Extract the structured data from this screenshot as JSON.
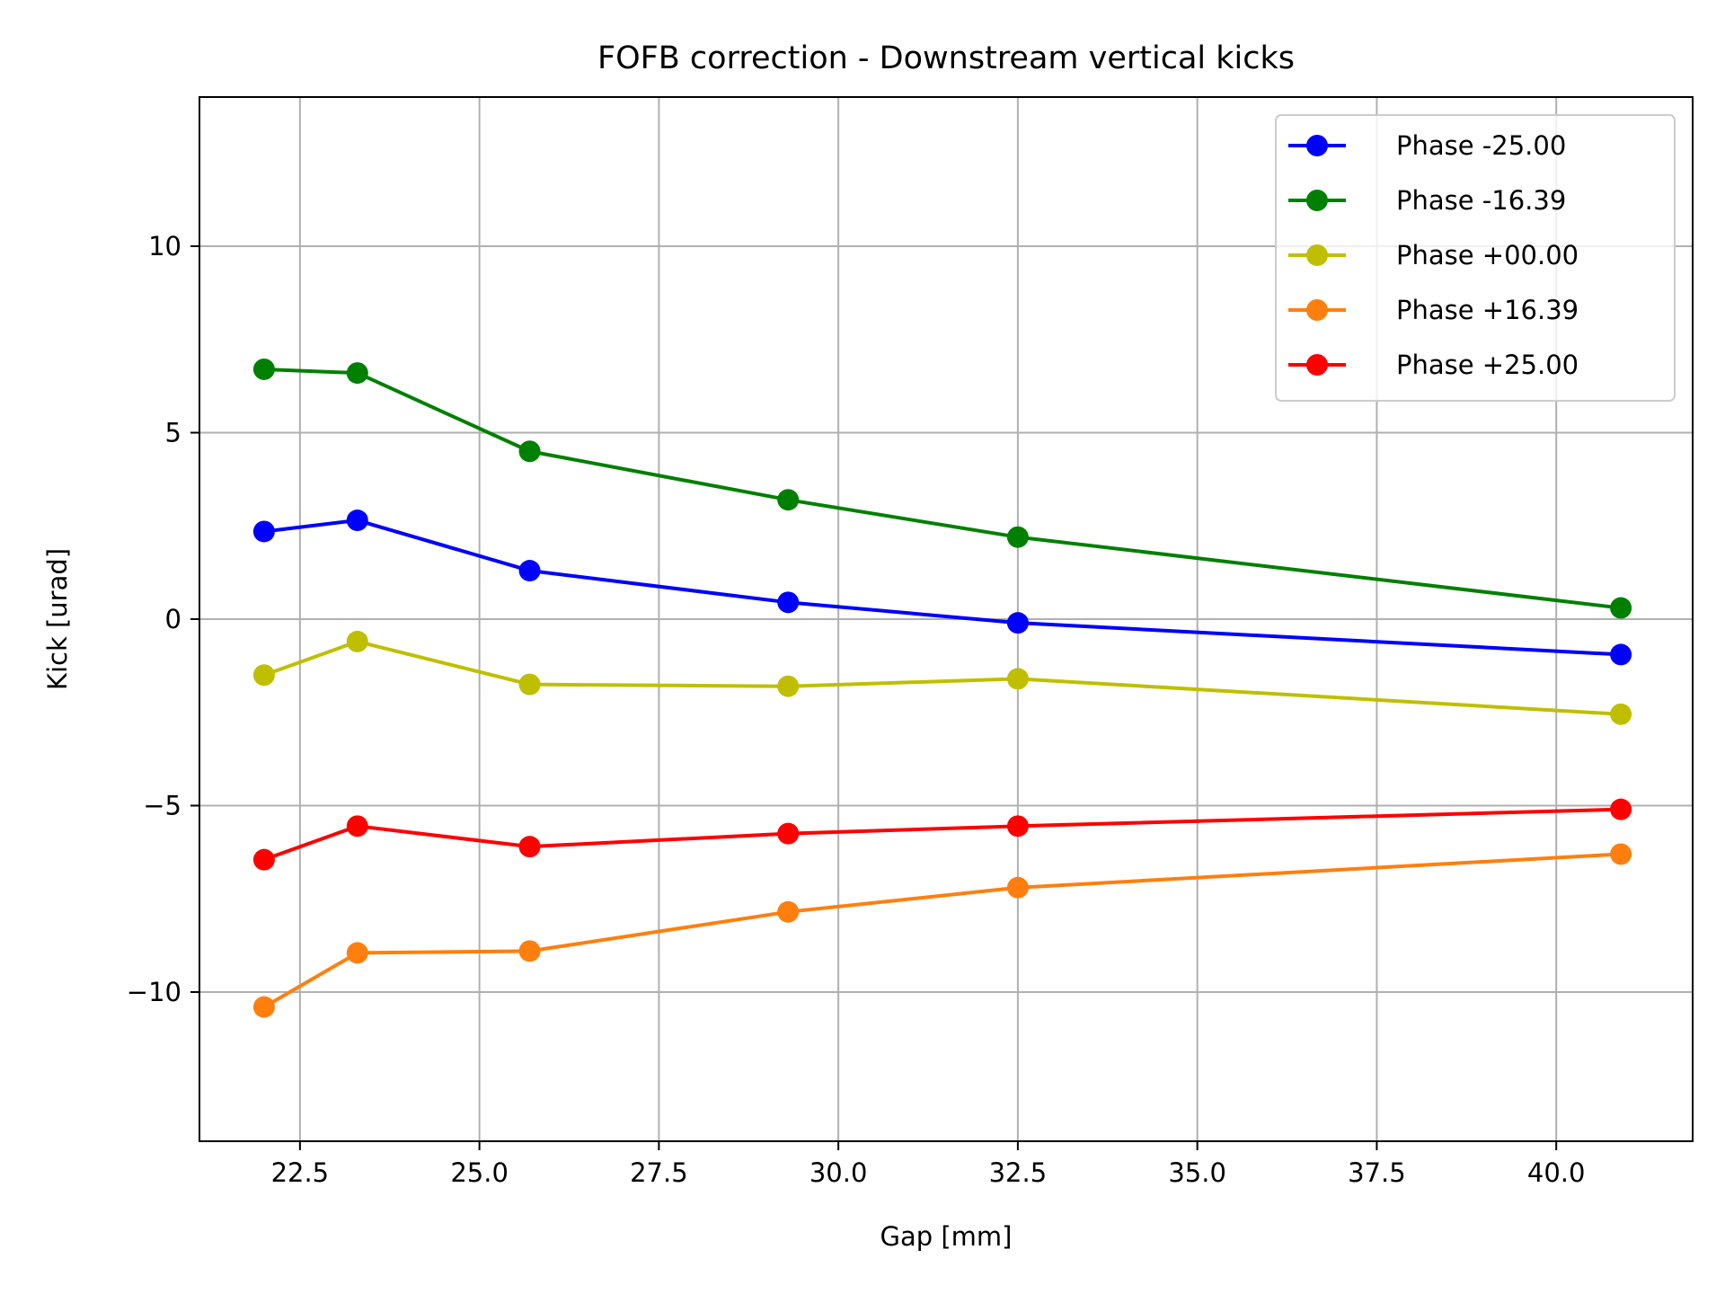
{
  "chart_data": {
    "type": "line",
    "title": "FOFB correction - Downstream vertical kicks",
    "xlabel": "Gap [mm]",
    "ylabel": "Kick [urad]",
    "xlim": [
      21.1,
      41.9
    ],
    "ylim": [
      -14,
      14
    ],
    "xticks": [
      22.5,
      25.0,
      27.5,
      30.0,
      32.5,
      35.0,
      37.5,
      40.0
    ],
    "xtick_labels": [
      "22.5",
      "25.0",
      "27.5",
      "30.0",
      "32.5",
      "35.0",
      "37.5",
      "40.0"
    ],
    "yticks": [
      -10,
      -5,
      0,
      5,
      10
    ],
    "ytick_labels": [
      "−10",
      "−5",
      "0",
      "5",
      "10"
    ],
    "grid": true,
    "legend_position": "top-right",
    "x": [
      22.0,
      23.3,
      25.7,
      29.3,
      32.5,
      40.9
    ],
    "series": [
      {
        "name": "Phase -25.00",
        "color": "#0000ff",
        "values": [
          2.35,
          2.65,
          1.3,
          0.45,
          -0.1,
          -0.95
        ]
      },
      {
        "name": "Phase -16.39",
        "color": "#008000",
        "values": [
          6.7,
          6.6,
          4.5,
          3.2,
          2.2,
          0.3
        ]
      },
      {
        "name": "Phase +00.00",
        "color": "#bfbf00",
        "values": [
          -1.5,
          -0.6,
          -1.75,
          -1.8,
          -1.6,
          -2.55
        ]
      },
      {
        "name": "Phase +16.39",
        "color": "#ff7f0e",
        "values": [
          -10.4,
          -8.95,
          -8.9,
          -7.85,
          -7.2,
          -6.3
        ]
      },
      {
        "name": "Phase +25.00",
        "color": "#ff0000",
        "values": [
          -6.45,
          -5.55,
          -6.1,
          -5.75,
          -5.55,
          -5.1
        ]
      }
    ]
  }
}
